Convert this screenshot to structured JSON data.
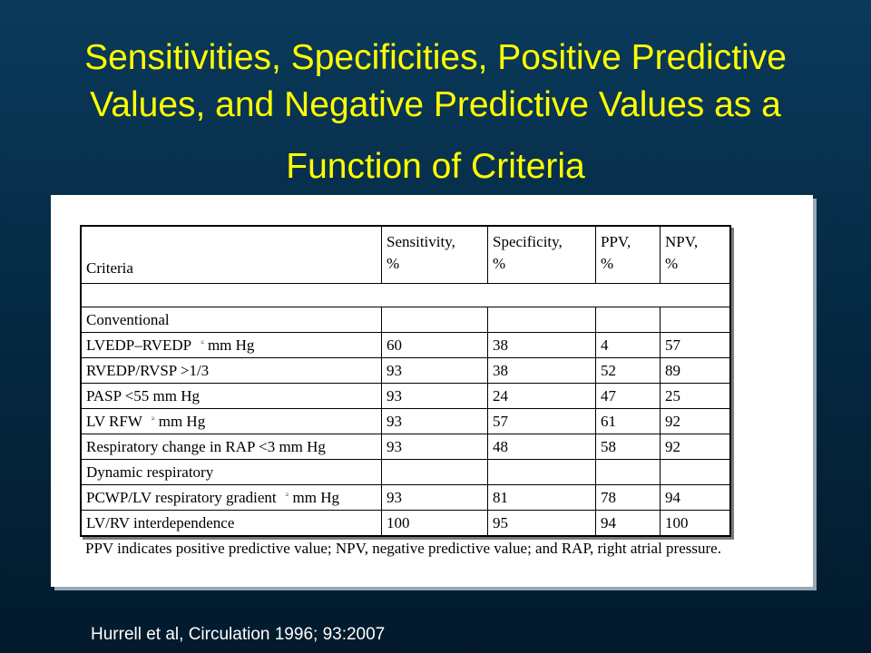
{
  "slide": {
    "title_line1": "Sensitivities, Specificities, Positive Predictive",
    "title_line2": "Values, and Negative Predictive Values as a",
    "title_line3": "Function of Criteria",
    "citation": "Hurrell et al, Circulation 1996; 93:2007"
  },
  "table": {
    "headers": {
      "criteria": "Criteria",
      "sensitivity_1": "Sensitivity,",
      "sensitivity_2": "%",
      "specificity_1": "Specificity,",
      "specificity_2": "%",
      "ppv_1": "PPV,",
      "ppv_2": "%",
      "npv_1": "NPV,",
      "npv_2": "%"
    },
    "rows": [
      {
        "criteria": "Conventional",
        "sens": "",
        "spec": "",
        "ppv": "",
        "npv": ""
      },
      {
        "criteria": "LVEDP–RVEDP",
        "sup": "≤",
        "unit": "mm Hg",
        "sens": "60",
        "spec": "38",
        "ppv": "4",
        "npv": "57"
      },
      {
        "criteria": "RVEDP/RVSP >1/3",
        "sens": "93",
        "spec": "38",
        "ppv": "52",
        "npv": "89"
      },
      {
        "criteria": "PASP <55 mm Hg",
        "sens": "93",
        "spec": "24",
        "ppv": "47",
        "npv": "25"
      },
      {
        "criteria": "LV RFW",
        "sup": "≥",
        "unit": "mm Hg",
        "sens": "93",
        "spec": "57",
        "ppv": "61",
        "npv": "92"
      },
      {
        "criteria": "Respiratory change in RAP <3 mm Hg",
        "sens": "93",
        "spec": "48",
        "ppv": "58",
        "npv": "92"
      },
      {
        "criteria": "Dynamic respiratory",
        "sens": "",
        "spec": "",
        "ppv": "",
        "npv": ""
      },
      {
        "criteria": "PCWP/LV respiratory gradient",
        "sup": "≥",
        "unit": "mm Hg",
        "sens": "93",
        "spec": "81",
        "ppv": "78",
        "npv": "94"
      },
      {
        "criteria": "LV/RV interdependence",
        "sens": "100",
        "spec": "95",
        "ppv": "94",
        "npv": "100"
      }
    ],
    "footnote": "PPV indicates positive predictive value; NPV, negative predictive value; and RAP, right atrial pressure."
  }
}
